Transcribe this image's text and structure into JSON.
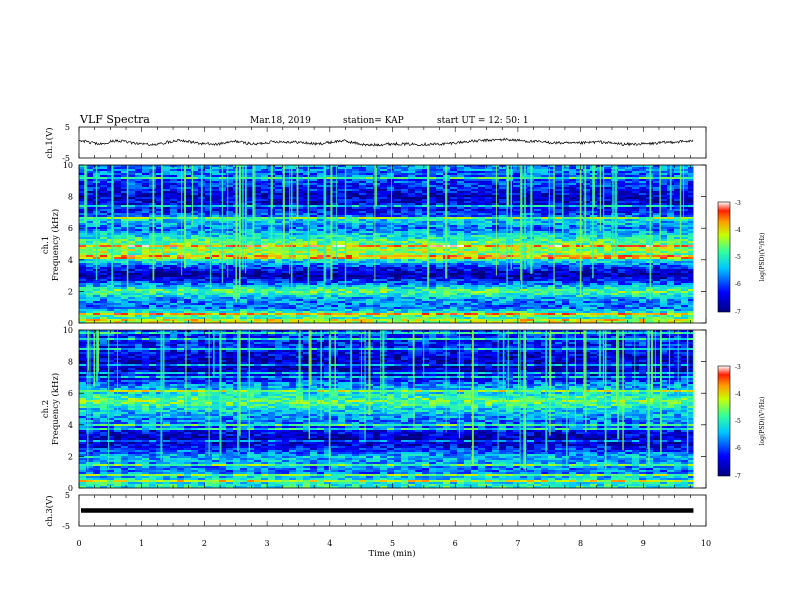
{
  "header": {
    "title": "VLF Spectra",
    "date": "Mar.18, 2019",
    "station": "station= KAP",
    "start": "start UT =  12: 50: 1"
  },
  "chart_data": [
    {
      "type": "line",
      "name": "ch1-waveform",
      "ylabel": "ch.1(V)",
      "ylim": [
        -5,
        5
      ],
      "yticks": [
        "5",
        "-5"
      ],
      "xlim": [
        0,
        10
      ],
      "x_end_min": 9.8,
      "color": "#000000",
      "trend": [
        [
          0.0,
          0.8
        ],
        [
          0.3,
          -0.5
        ],
        [
          0.6,
          0.6
        ],
        [
          0.9,
          -0.2
        ],
        [
          1.2,
          -0.8
        ],
        [
          1.6,
          0.9
        ],
        [
          1.9,
          -0.3
        ],
        [
          2.2,
          -0.6
        ],
        [
          2.5,
          0.4
        ],
        [
          2.8,
          -0.6
        ],
        [
          3.1,
          0.3
        ],
        [
          3.5,
          0.1
        ],
        [
          3.8,
          -0.5
        ],
        [
          4.2,
          0.6
        ],
        [
          4.6,
          -0.9
        ],
        [
          5.0,
          -0.4
        ],
        [
          5.4,
          -0.6
        ],
        [
          5.8,
          -0.5
        ],
        [
          6.2,
          0.3
        ],
        [
          6.5,
          0.7
        ],
        [
          6.8,
          1.0
        ],
        [
          7.1,
          0.5
        ],
        [
          7.5,
          0.0
        ],
        [
          7.9,
          -0.3
        ],
        [
          8.3,
          0.2
        ],
        [
          8.7,
          -0.6
        ],
        [
          9.1,
          -0.4
        ],
        [
          9.4,
          0.1
        ],
        [
          9.8,
          0.5
        ]
      ]
    },
    {
      "type": "heatmap",
      "name": "ch1-spectrogram",
      "ylabel_top": "ch.1",
      "ylabel": "Frequency (kHz)",
      "ylim": [
        0,
        10
      ],
      "yticks": [
        "0",
        "2",
        "4",
        "6",
        "8",
        "10"
      ],
      "xlim": [
        0,
        10
      ],
      "x_end_min": 9.8,
      "colorbar": {
        "label": "log(PSD)(V²/Hz)",
        "range": [
          -7,
          -3
        ],
        "ticks": [
          "-3",
          "-4",
          "-5",
          "-6",
          "-7"
        ]
      },
      "band_levels_low_to_high": [
        [
          0.0,
          0.4
        ],
        [
          0.5,
          0.6
        ],
        [
          1.0,
          0.3
        ],
        [
          1.5,
          0.35
        ],
        [
          2.0,
          0.6
        ],
        [
          2.5,
          0.3
        ],
        [
          3.0,
          0.05
        ],
        [
          3.5,
          0.2
        ],
        [
          4.0,
          0.5
        ],
        [
          4.5,
          0.65
        ],
        [
          5.0,
          0.6
        ],
        [
          5.5,
          0.45
        ],
        [
          6.0,
          0.3
        ],
        [
          6.5,
          0.45
        ],
        [
          7.0,
          0.2
        ],
        [
          7.5,
          0.15
        ],
        [
          8.0,
          0.1
        ],
        [
          8.5,
          0.2
        ],
        [
          9.0,
          0.25
        ],
        [
          9.5,
          0.3
        ],
        [
          10.0,
          0.35
        ]
      ]
    },
    {
      "type": "heatmap",
      "name": "ch2-spectrogram",
      "ylabel_top": "ch.2",
      "ylabel": "Frequency (kHz)",
      "ylim": [
        0,
        10
      ],
      "yticks": [
        "0",
        "2",
        "4",
        "6",
        "8",
        "10"
      ],
      "xlim": [
        0,
        10
      ],
      "x_end_min": 9.8,
      "colorbar": {
        "label": "log(PSD)(V²/Hz)",
        "range": [
          -7,
          -3
        ],
        "ticks": [
          "-3",
          "-4",
          "-5",
          "-6",
          "-7"
        ]
      },
      "band_levels_low_to_high": [
        [
          0.0,
          0.5
        ],
        [
          0.5,
          0.45
        ],
        [
          1.0,
          0.3
        ],
        [
          1.5,
          0.35
        ],
        [
          2.0,
          0.4
        ],
        [
          2.5,
          0.2
        ],
        [
          3.0,
          0.05
        ],
        [
          3.5,
          0.15
        ],
        [
          4.0,
          0.3
        ],
        [
          4.5,
          0.35
        ],
        [
          5.0,
          0.45
        ],
        [
          5.5,
          0.6
        ],
        [
          6.0,
          0.45
        ],
        [
          6.5,
          0.35
        ],
        [
          7.0,
          0.15
        ],
        [
          7.5,
          0.1
        ],
        [
          8.0,
          0.1
        ],
        [
          8.5,
          0.15
        ],
        [
          9.0,
          0.2
        ],
        [
          9.5,
          0.2
        ],
        [
          10.0,
          0.25
        ]
      ]
    },
    {
      "type": "line",
      "name": "ch3-waveform",
      "ylabel": "ch.3(V)",
      "ylim": [
        -5,
        5
      ],
      "yticks": [
        "5",
        "-5"
      ],
      "xlim": [
        0,
        10
      ],
      "x_end_min": 9.8,
      "constant_value": 0,
      "color": "#000000"
    }
  ],
  "x_axis": {
    "label": "Time (min)",
    "ticks": [
      "0",
      "1",
      "2",
      "3",
      "4",
      "5",
      "6",
      "7",
      "8",
      "9",
      "10"
    ]
  },
  "colors": {
    "colormap": [
      "#00007f",
      "#0000ff",
      "#00c8ff",
      "#35ff9b",
      "#c8ff00",
      "#ff9e00",
      "#ff1e00",
      "#ffffff"
    ],
    "background": "#ffffff",
    "axes": "#000000"
  }
}
